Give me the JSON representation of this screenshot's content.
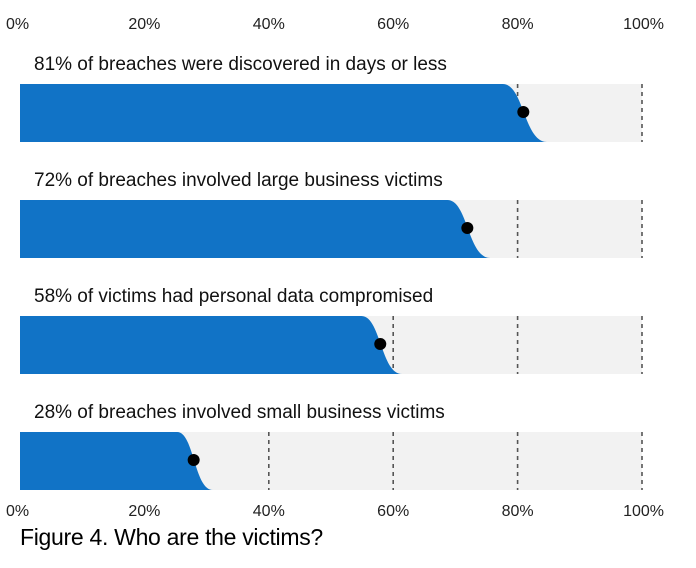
{
  "chart_data": {
    "type": "bar",
    "orientation": "horizontal",
    "xlim": [
      0,
      100
    ],
    "xticks": [
      "0%",
      "20%",
      "40%",
      "60%",
      "80%",
      "100%"
    ],
    "tick_values": [
      0,
      20,
      40,
      60,
      80,
      100
    ],
    "grid": "dashed vertical at 20% intervals",
    "bars": [
      {
        "label": "81% of breaches were discovered in days or less",
        "value": 81
      },
      {
        "label": "72% of breaches involved large business victims",
        "value": 72
      },
      {
        "label": "58% of victims had personal data compromised",
        "value": 58
      },
      {
        "label": "28% of breaches involved small business victims",
        "value": 28
      }
    ],
    "colors": {
      "bar": "#1173c6",
      "track": "#f2f2f2",
      "marker": "#000000",
      "grid": "#555555"
    }
  },
  "caption": "Figure 4. Who are the victims?"
}
